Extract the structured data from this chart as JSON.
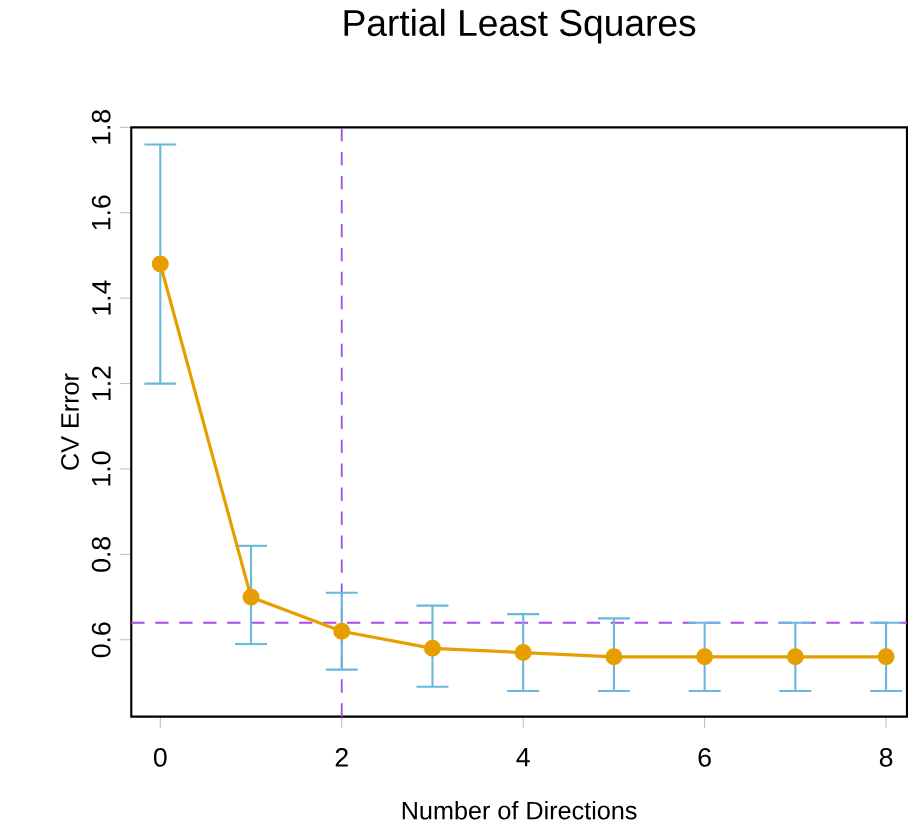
{
  "chart_data": {
    "type": "line",
    "title": "Partial Least Squares",
    "xlabel": "Number of  Directions",
    "ylabel": "CV Error",
    "x": [
      0,
      1,
      2,
      3,
      4,
      5,
      6,
      7,
      8
    ],
    "values": [
      1.48,
      0.7,
      0.62,
      0.58,
      0.57,
      0.56,
      0.56,
      0.56,
      0.56
    ],
    "errors": [
      [
        1.2,
        1.76
      ],
      [
        0.59,
        0.82
      ],
      [
        0.53,
        0.71
      ],
      [
        0.49,
        0.68
      ],
      [
        0.48,
        0.66
      ],
      [
        0.48,
        0.65
      ],
      [
        0.48,
        0.64
      ],
      [
        0.48,
        0.64
      ],
      [
        0.48,
        0.64
      ]
    ],
    "color": "#e69f00",
    "marker": "circle",
    "xlim": [
      -0.32,
      8.23
    ],
    "ylim": [
      0.42,
      1.8
    ],
    "xticks": [
      0,
      2,
      4,
      6,
      8
    ],
    "yticks": [
      0.6,
      0.8,
      {
        "value": 1.0,
        "label": "1.0"
      },
      1.2,
      1.4,
      1.6,
      1.8
    ],
    "ref_lines": [
      {
        "axis": "x",
        "value": 2,
        "color": "#a54ee8",
        "line_style": "dashed"
      },
      {
        "axis": "y",
        "value": 0.64,
        "color": "#a54ee8",
        "line_style": "dashed"
      }
    ]
  }
}
